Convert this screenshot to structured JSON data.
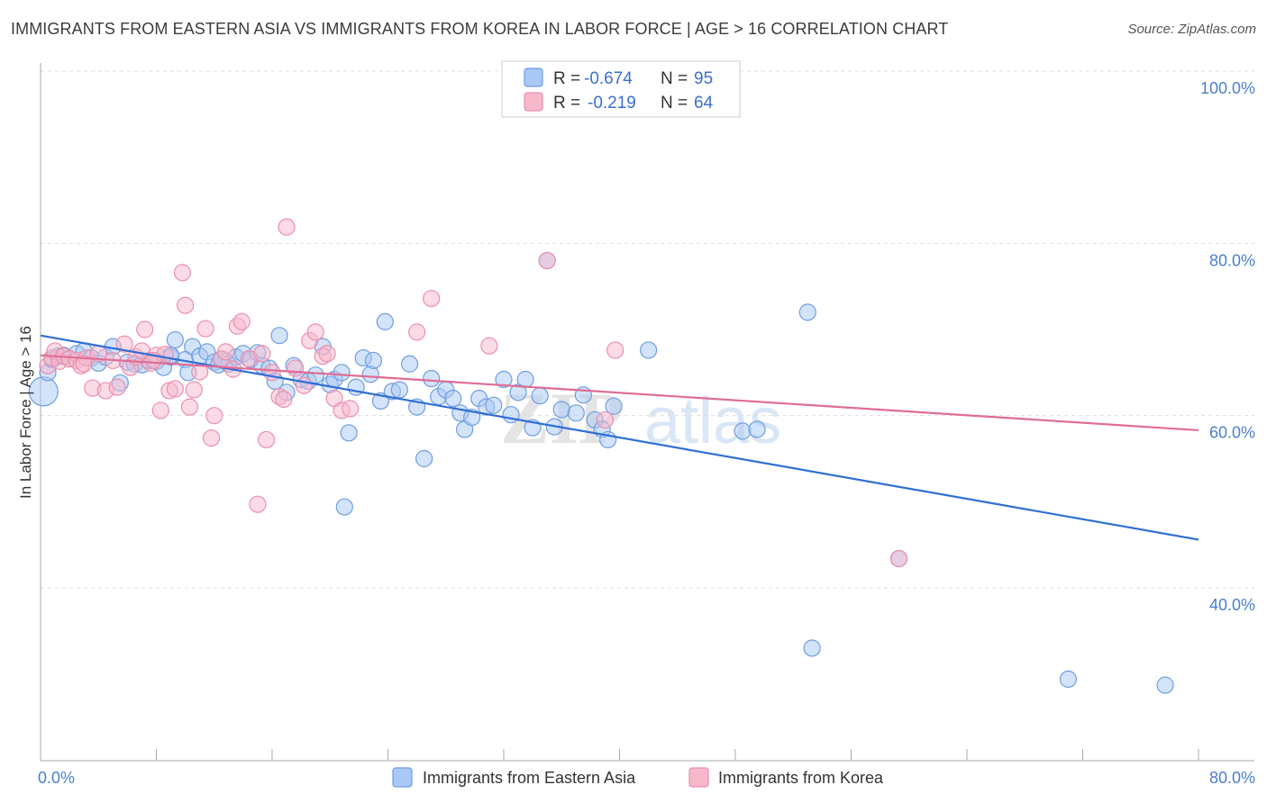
{
  "header": {
    "title": "IMMIGRANTS FROM EASTERN ASIA VS IMMIGRANTS FROM KOREA IN LABOR FORCE | AGE > 16 CORRELATION CHART",
    "source": "Source: ZipAtlas.com"
  },
  "colors": {
    "blue_fill": "#a8c8f5",
    "blue_stroke": "#6f9ee0",
    "blue_line": "#2f6fd4",
    "pink_fill": "#f7b8cb",
    "pink_stroke": "#ec8fab",
    "pink_line": "#e06c95",
    "axis_label": "#4a7fcf",
    "grid": "#dddddd"
  },
  "legend": {
    "r_label": "R =",
    "n_label": "N =",
    "rows": [
      {
        "r": "-0.674",
        "n": "95"
      },
      {
        "r": "-0.219",
        "n": "64"
      }
    ]
  },
  "watermark": {
    "zip": "ZIP",
    "atlas": "atlas"
  },
  "chart_data": {
    "type": "scatter",
    "title": "IMMIGRANTS FROM EASTERN ASIA VS IMMIGRANTS FROM KOREA IN LABOR FORCE | AGE > 16 CORRELATION CHART",
    "xlabel": "",
    "ylabel": "In Labor Force | Age > 16",
    "xlim": [
      0,
      80
    ],
    "ylim": [
      20,
      102
    ],
    "x_tick_labels": [
      {
        "value": 0,
        "label": "0.0%"
      },
      {
        "value": 80,
        "label": "80.0%"
      }
    ],
    "y_tick_labels": [
      {
        "value": 100,
        "label": "100.0%"
      },
      {
        "value": 80,
        "label": "80.0%"
      },
      {
        "value": 60,
        "label": "60.0%"
      },
      {
        "value": 40,
        "label": "40.0%"
      }
    ],
    "x_minor_ticks": [
      0,
      8,
      16,
      24,
      32,
      40,
      48,
      56,
      64,
      72,
      80
    ],
    "y_gridlines": [
      100,
      80,
      60,
      40
    ],
    "series": [
      {
        "name": "Immigrants from Eastern Asia",
        "color": "blue",
        "trend": {
          "x": [
            0,
            80
          ],
          "y": [
            69.3,
            45.6
          ]
        },
        "points": [
          [
            0.2,
            62.8
          ],
          [
            0.5,
            65.0
          ],
          [
            0.8,
            66.5
          ],
          [
            1.2,
            66.9
          ],
          [
            1.6,
            67.0
          ],
          [
            2.0,
            66.6
          ],
          [
            2.5,
            67.2
          ],
          [
            3.0,
            67.5
          ],
          [
            3.5,
            66.7
          ],
          [
            4.0,
            66.1
          ],
          [
            4.5,
            66.8
          ],
          [
            5.0,
            68.0
          ],
          [
            5.5,
            63.8
          ],
          [
            6.0,
            66.2
          ],
          [
            6.5,
            66.0
          ],
          [
            7.0,
            65.9
          ],
          [
            7.5,
            66.4
          ],
          [
            8.0,
            66.3
          ],
          [
            8.5,
            65.6
          ],
          [
            9.0,
            66.8
          ],
          [
            9.3,
            68.8
          ],
          [
            10.0,
            66.5
          ],
          [
            10.2,
            65.0
          ],
          [
            10.5,
            68.0
          ],
          [
            11.0,
            66.9
          ],
          [
            11.5,
            67.4
          ],
          [
            12.0,
            66.2
          ],
          [
            12.3,
            65.9
          ],
          [
            12.8,
            66.3
          ],
          [
            13.0,
            66.0
          ],
          [
            13.5,
            66.8
          ],
          [
            14.0,
            67.2
          ],
          [
            14.5,
            66.5
          ],
          [
            15.0,
            67.3
          ],
          [
            15.3,
            65.8
          ],
          [
            15.8,
            65.5
          ],
          [
            16.2,
            64.0
          ],
          [
            16.5,
            69.3
          ],
          [
            17.0,
            62.7
          ],
          [
            17.5,
            65.8
          ],
          [
            18.0,
            64.2
          ],
          [
            18.5,
            64.0
          ],
          [
            19.0,
            64.7
          ],
          [
            19.5,
            68.0
          ],
          [
            20.0,
            63.6
          ],
          [
            20.3,
            64.2
          ],
          [
            20.8,
            65.0
          ],
          [
            21.3,
            58.0
          ],
          [
            21.8,
            63.3
          ],
          [
            22.3,
            66.7
          ],
          [
            22.8,
            64.8
          ],
          [
            23.0,
            66.4
          ],
          [
            23.5,
            61.7
          ],
          [
            23.8,
            70.9
          ],
          [
            24.3,
            62.8
          ],
          [
            24.8,
            63.0
          ],
          [
            25.5,
            66.0
          ],
          [
            26.0,
            61.0
          ],
          [
            26.5,
            55.0
          ],
          [
            27.0,
            64.3
          ],
          [
            27.5,
            62.2
          ],
          [
            28.0,
            63.0
          ],
          [
            28.5,
            62.0
          ],
          [
            29.0,
            60.3
          ],
          [
            29.3,
            58.4
          ],
          [
            29.8,
            59.8
          ],
          [
            30.3,
            62.0
          ],
          [
            30.8,
            61.0
          ],
          [
            31.3,
            61.2
          ],
          [
            32.0,
            64.2
          ],
          [
            32.5,
            60.1
          ],
          [
            33.0,
            62.7
          ],
          [
            33.5,
            64.2
          ],
          [
            34.0,
            58.6
          ],
          [
            34.5,
            62.3
          ],
          [
            35.0,
            78.0
          ],
          [
            35.5,
            58.7
          ],
          [
            36.0,
            60.7
          ],
          [
            37.0,
            60.3
          ],
          [
            37.5,
            62.4
          ],
          [
            38.3,
            59.5
          ],
          [
            38.8,
            58.4
          ],
          [
            39.2,
            57.2
          ],
          [
            39.6,
            61.1
          ],
          [
            42.0,
            67.6
          ],
          [
            48.5,
            58.2
          ],
          [
            49.5,
            58.4
          ],
          [
            53.0,
            72.0
          ],
          [
            53.3,
            33.0
          ],
          [
            59.3,
            43.4
          ],
          [
            71.0,
            29.4
          ],
          [
            77.7,
            28.7
          ],
          [
            21.0,
            49.4
          ],
          [
            9.0,
            67.0
          ],
          [
            12.5,
            66.5
          ]
        ]
      },
      {
        "name": "Immigrants from Korea",
        "color": "pink",
        "trend": {
          "x": [
            0,
            80
          ],
          "y": [
            67.0,
            58.3
          ]
        },
        "points": [
          [
            0.5,
            65.8
          ],
          [
            0.8,
            66.7
          ],
          [
            1.0,
            67.5
          ],
          [
            1.3,
            66.3
          ],
          [
            1.6,
            66.9
          ],
          [
            2.0,
            66.6
          ],
          [
            2.5,
            66.4
          ],
          [
            2.8,
            65.8
          ],
          [
            3.2,
            66.7
          ],
          [
            3.6,
            63.2
          ],
          [
            4.0,
            67.2
          ],
          [
            4.5,
            62.9
          ],
          [
            5.0,
            66.4
          ],
          [
            5.3,
            63.3
          ],
          [
            5.8,
            68.3
          ],
          [
            6.2,
            65.6
          ],
          [
            6.6,
            66.8
          ],
          [
            7.0,
            67.5
          ],
          [
            7.2,
            70.0
          ],
          [
            7.6,
            66.1
          ],
          [
            8.0,
            67.0
          ],
          [
            8.3,
            60.6
          ],
          [
            8.6,
            67.1
          ],
          [
            8.9,
            62.9
          ],
          [
            9.3,
            63.1
          ],
          [
            9.8,
            76.6
          ],
          [
            10.0,
            72.8
          ],
          [
            10.3,
            61.0
          ],
          [
            10.6,
            63.0
          ],
          [
            11.0,
            65.1
          ],
          [
            11.4,
            70.1
          ],
          [
            11.8,
            57.4
          ],
          [
            12.0,
            60.0
          ],
          [
            12.5,
            66.6
          ],
          [
            12.8,
            67.4
          ],
          [
            13.3,
            65.4
          ],
          [
            13.6,
            70.4
          ],
          [
            13.9,
            70.9
          ],
          [
            14.4,
            66.6
          ],
          [
            15.0,
            49.7
          ],
          [
            15.3,
            67.2
          ],
          [
            15.6,
            57.2
          ],
          [
            16.0,
            65.0
          ],
          [
            16.5,
            62.2
          ],
          [
            16.8,
            61.9
          ],
          [
            17.0,
            81.9
          ],
          [
            17.6,
            65.5
          ],
          [
            18.2,
            63.5
          ],
          [
            18.6,
            68.7
          ],
          [
            19.0,
            69.7
          ],
          [
            19.5,
            66.9
          ],
          [
            19.8,
            67.2
          ],
          [
            20.3,
            62.0
          ],
          [
            20.8,
            60.6
          ],
          [
            21.4,
            60.8
          ],
          [
            26.0,
            69.7
          ],
          [
            27.0,
            73.6
          ],
          [
            31.0,
            68.1
          ],
          [
            35.0,
            78.0
          ],
          [
            39.0,
            59.5
          ],
          [
            39.7,
            67.6
          ],
          [
            59.3,
            43.4
          ],
          [
            7.8,
            66.4
          ],
          [
            3.0,
            66.0
          ]
        ]
      }
    ]
  },
  "bottom_legend": {
    "items": [
      {
        "label": "Immigrants from Eastern Asia"
      },
      {
        "label": "Immigrants from Korea"
      }
    ]
  }
}
